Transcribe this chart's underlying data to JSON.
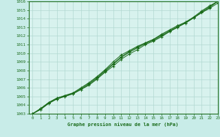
{
  "title": "Graphe pression niveau de la mer (hPa)",
  "bg_color": "#c8ece8",
  "plot_bg_color": "#d8f2ee",
  "grid_color": "#b0d8d0",
  "line_color": "#1a6b1a",
  "xlim": [
    -0.5,
    23
  ],
  "ylim": [
    1003,
    1016
  ],
  "xticks": [
    0,
    1,
    2,
    3,
    4,
    5,
    6,
    7,
    8,
    9,
    10,
    11,
    12,
    13,
    14,
    15,
    16,
    17,
    18,
    19,
    20,
    21,
    22,
    23
  ],
  "yticks": [
    1003,
    1004,
    1005,
    1006,
    1007,
    1008,
    1009,
    1010,
    1011,
    1012,
    1013,
    1014,
    1015,
    1016
  ],
  "series": [
    [
      1003.0,
      1003.5,
      1004.2,
      1004.7,
      1005.0,
      1005.3,
      1005.8,
      1006.3,
      1007.0,
      1007.8,
      1008.5,
      1009.3,
      1009.9,
      1010.4,
      1011.0,
      1011.4,
      1011.9,
      1012.5,
      1013.0,
      1013.6,
      1014.2,
      1014.9,
      1015.5,
      1016.0
    ],
    [
      1003.0,
      1003.5,
      1004.2,
      1004.7,
      1005.0,
      1005.3,
      1005.8,
      1006.4,
      1007.1,
      1007.9,
      1008.7,
      1009.5,
      1010.1,
      1010.6,
      1011.1,
      1011.5,
      1012.0,
      1012.5,
      1013.0,
      1013.5,
      1014.1,
      1014.8,
      1015.4,
      1016.0
    ],
    [
      1003.0,
      1003.6,
      1004.3,
      1004.8,
      1005.1,
      1005.4,
      1005.9,
      1006.5,
      1007.2,
      1008.0,
      1008.8,
      1009.6,
      1010.2,
      1010.7,
      1011.2,
      1011.6,
      1012.1,
      1012.6,
      1013.1,
      1013.5,
      1014.1,
      1014.7,
      1015.3,
      1016.0
    ],
    [
      1003.0,
      1003.6,
      1004.3,
      1004.8,
      1005.1,
      1005.4,
      1006.0,
      1006.6,
      1007.3,
      1008.1,
      1009.0,
      1009.8,
      1010.3,
      1010.8,
      1011.2,
      1011.6,
      1012.2,
      1012.7,
      1013.2,
      1013.6,
      1014.1,
      1014.7,
      1015.2,
      1015.8
    ]
  ]
}
